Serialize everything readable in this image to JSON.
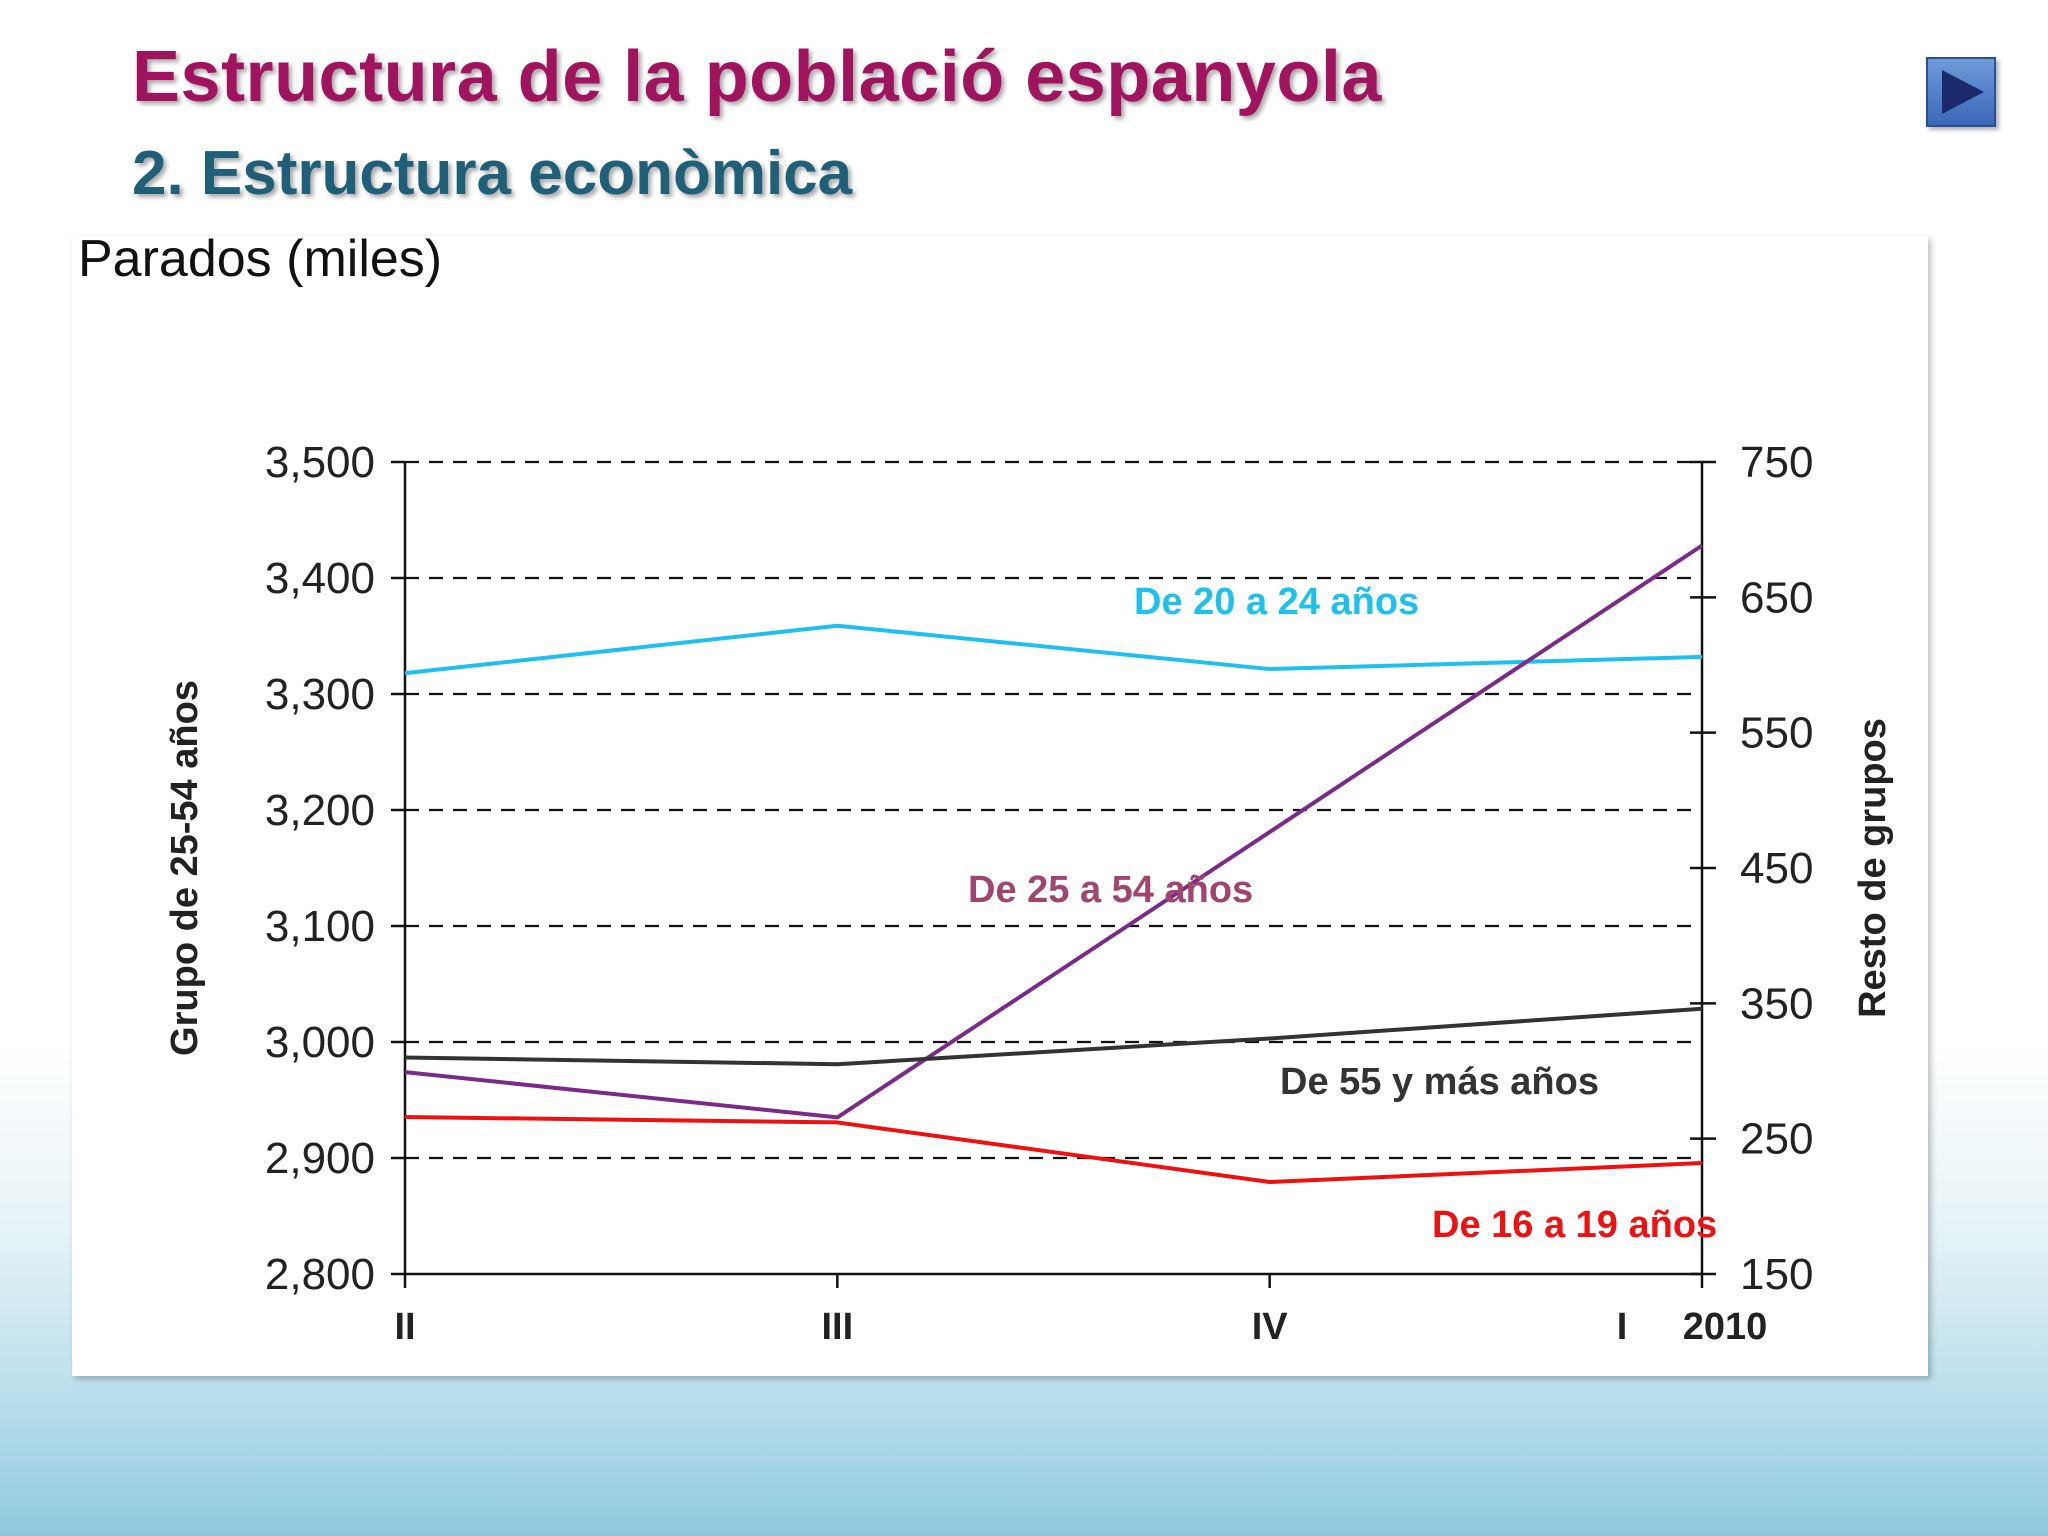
{
  "header": {
    "title": "Estructura de la població espanyola",
    "subtitle": "2. Estructura econòmica"
  },
  "colors": {
    "title": "#a0145f",
    "subtitle": "#1f5f78",
    "button": "#3a68b9"
  },
  "chart_data": {
    "type": "line",
    "title": "Parados (miles)",
    "categories": [
      "II",
      "III",
      "IV",
      "I"
    ],
    "year_label": "2010",
    "y_left": {
      "label": "Grupo de 25-54 años",
      "lim": [
        2800,
        3500
      ],
      "ticks": [
        2800,
        2900,
        3000,
        3100,
        3200,
        3300,
        3400,
        3500
      ],
      "tick_labels": [
        "2,800",
        "2,900",
        "3,000",
        "3,100",
        "3,200",
        "3,300",
        "3,400",
        "3,500"
      ]
    },
    "y_right": {
      "label": "Resto de grupos",
      "lim": [
        150,
        750
      ],
      "ticks": [
        150,
        250,
        350,
        450,
        550,
        650,
        750
      ],
      "tick_labels": [
        "150",
        "250",
        "350",
        "450",
        "550",
        "650",
        "750"
      ]
    },
    "grid": "dashed horizontal",
    "series": [
      {
        "name": "De 20 a 24 años",
        "axis": "right",
        "color": "#1ec0ee",
        "values": [
          594,
          629,
          597,
          606
        ]
      },
      {
        "name": "De 25 a 54 años",
        "axis": "left",
        "color": "#7b2a8a",
        "label_color": "#a0456e",
        "values": [
          2974,
          2935,
          3181,
          3428
        ]
      },
      {
        "name": "De 55 y más años",
        "axis": "right",
        "color": "#333333",
        "values": [
          310,
          305,
          324,
          346
        ]
      },
      {
        "name": "De 16 a 19 años",
        "axis": "right",
        "color": "#ee1111",
        "values": [
          266,
          262,
          218,
          232
        ]
      }
    ]
  }
}
